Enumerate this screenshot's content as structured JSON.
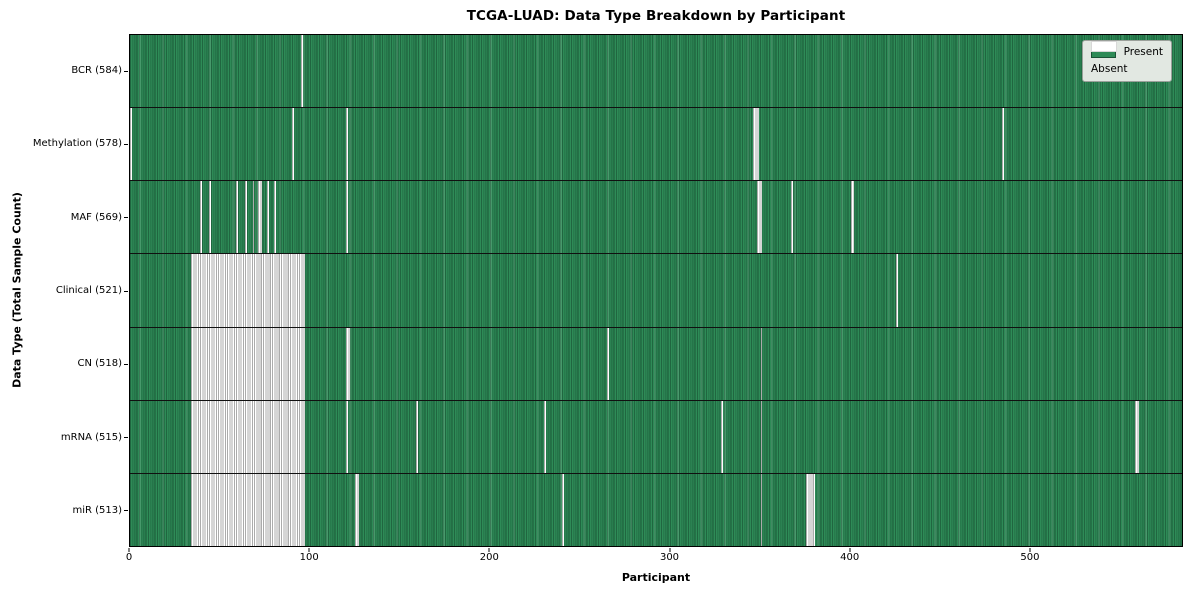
{
  "title": "TCGA-LUAD: Data Type Breakdown by Participant",
  "xlabel": "Participant",
  "ylabel": "Data Type (Total Sample Count)",
  "legend": {
    "present": "Present",
    "absent": "Absent"
  },
  "colors": {
    "present_fill": "#2e8b57",
    "present_edge": "#175032",
    "absent_fill": "#ffffff",
    "absent_edge": "#ababab",
    "legend_bg": "#e2e8e2",
    "frame": "#000000"
  },
  "chart_data": {
    "type": "heatmap",
    "title": "TCGA-LUAD: Data Type Breakdown by Participant",
    "xlabel": "Participant",
    "ylabel": "Data Type (Total Sample Count)",
    "legend": [
      "Present",
      "Absent"
    ],
    "legend_position": "upper right",
    "x_range": [
      0,
      585
    ],
    "n_participants": 585,
    "x_ticks": [
      0,
      100,
      200,
      300,
      400,
      500
    ],
    "cell_values": {
      "present": 1,
      "absent": 0
    },
    "rows": [
      {
        "label": "BCR (584)",
        "data_type": "BCR",
        "count": 584,
        "absent_runs": [
          [
            95,
            1
          ]
        ]
      },
      {
        "label": "Methylation (578)",
        "data_type": "Methylation",
        "count": 578,
        "absent_runs": [
          [
            0,
            1
          ],
          [
            90,
            1
          ],
          [
            120,
            1
          ],
          [
            346,
            3
          ],
          [
            484,
            1
          ]
        ]
      },
      {
        "label": "MAF (569)",
        "data_type": "MAF",
        "count": 569,
        "absent_runs": [
          [
            39,
            1
          ],
          [
            44,
            1
          ],
          [
            59,
            1
          ],
          [
            64,
            1
          ],
          [
            68,
            1
          ],
          [
            71,
            2
          ],
          [
            76,
            1
          ],
          [
            80,
            1
          ],
          [
            120,
            1
          ],
          [
            348,
            3
          ],
          [
            367,
            1
          ],
          [
            400,
            2
          ]
        ]
      },
      {
        "label": "Clinical (521)",
        "data_type": "Clinical",
        "count": 521,
        "absent_runs": [
          [
            34,
            63
          ],
          [
            425,
            1
          ]
        ]
      },
      {
        "label": "CN (518)",
        "data_type": "CN",
        "count": 518,
        "absent_runs": [
          [
            34,
            63
          ],
          [
            120,
            2
          ],
          [
            265,
            1
          ],
          [
            350,
            1
          ]
        ]
      },
      {
        "label": "mRNA (515)",
        "data_type": "mRNA",
        "count": 515,
        "absent_runs": [
          [
            34,
            63
          ],
          [
            120,
            1
          ],
          [
            159,
            1
          ],
          [
            230,
            1
          ],
          [
            328,
            1
          ],
          [
            350,
            1
          ],
          [
            558,
            2
          ]
        ]
      },
      {
        "label": "miR (513)",
        "data_type": "miR",
        "count": 513,
        "absent_runs": [
          [
            34,
            63
          ],
          [
            125,
            2
          ],
          [
            240,
            1
          ],
          [
            350,
            1
          ],
          [
            375,
            5
          ]
        ]
      }
    ]
  }
}
